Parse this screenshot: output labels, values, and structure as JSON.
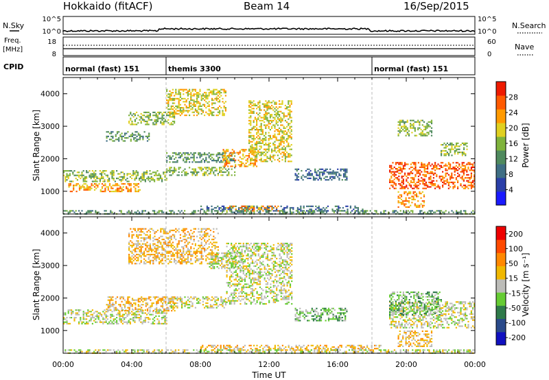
{
  "header": {
    "station": "Hokkaido (fitACF)",
    "beam": "Beam 14",
    "date": "16/Sep/2015"
  },
  "strip": {
    "nsky_label": "N.Sky",
    "nsearch_label": "N.Search",
    "freq_label_1": "Freq.",
    "freq_label_2": "[MHz]",
    "nave_label": "Nave",
    "cpid_label": "CPID",
    "noise_left_ticks": [
      "10^5",
      "10^0"
    ],
    "noise_right_ticks": [
      "10^5",
      "10^0"
    ],
    "freq_left_ticks": [
      "18",
      "8"
    ],
    "freq_right_ticks": [
      "60",
      "0"
    ]
  },
  "cpid_segments": [
    {
      "label": "normal (fast) 151",
      "start": "00:00",
      "end": "06:00"
    },
    {
      "label": "themis 3300",
      "start": "06:00",
      "end": "18:00"
    },
    {
      "label": "normal (fast) 151",
      "start": "18:00",
      "end": "24:00"
    }
  ],
  "colors": {
    "power_scale": [
      "#1a1aff",
      "#2a3fa8",
      "#3f6e84",
      "#4f8a5e",
      "#7fb33c",
      "#e0d020",
      "#ff9a00",
      "#ff5a00",
      "#ee1a00"
    ],
    "velocity_scale": [
      "#1010c0",
      "#2a4a8a",
      "#2f7a4a",
      "#66cc33",
      "#bcbcb8",
      "#f0b800",
      "#ff8800",
      "#ff4a00",
      "#ee0000"
    ]
  },
  "chart_data": [
    {
      "type": "heatmap",
      "title": "Power",
      "ylabel": "Slant Range [km]",
      "xlabel": "Time UT",
      "ylim": [
        300,
        4500
      ],
      "y_ticks": [
        "1000",
        "2000",
        "3000",
        "4000"
      ],
      "x_ticks": [
        "00:00",
        "04:00",
        "08:00",
        "12:00",
        "16:00",
        "20:00",
        "00:00"
      ],
      "colorbar_label": "Power [dB]",
      "colorbar_ticks": [
        "4",
        "8",
        "12",
        "16",
        "20",
        "24",
        "28"
      ],
      "regions": [
        {
          "t0": 0.0,
          "t1": 6.0,
          "r0": 1300,
          "r1": 1650,
          "level": 4
        },
        {
          "t0": 0.3,
          "t1": 4.5,
          "r0": 1000,
          "r1": 1250,
          "level": 6
        },
        {
          "t0": 2.5,
          "t1": 5.0,
          "r0": 2550,
          "r1": 2850,
          "level": 3
        },
        {
          "t0": 3.8,
          "t1": 6.5,
          "r0": 3050,
          "r1": 3450,
          "level": 4
        },
        {
          "t0": 6.0,
          "t1": 9.5,
          "r0": 3350,
          "r1": 4150,
          "level": 5
        },
        {
          "t0": 6.0,
          "t1": 10.0,
          "r0": 1900,
          "r1": 2200,
          "level": 3
        },
        {
          "t0": 6.0,
          "t1": 10.0,
          "r0": 1500,
          "r1": 1750,
          "level": 4
        },
        {
          "t0": 9.3,
          "t1": 11.3,
          "r0": 1750,
          "r1": 2300,
          "level": 6
        },
        {
          "t0": 10.8,
          "t1": 13.3,
          "r0": 1900,
          "r1": 3800,
          "level": 5
        },
        {
          "t0": 8.0,
          "t1": 17.5,
          "r0": 380,
          "r1": 560,
          "level": 2
        },
        {
          "t0": 9.5,
          "t1": 12.5,
          "r0": 380,
          "r1": 560,
          "level": 6
        },
        {
          "t0": 13.5,
          "t1": 16.5,
          "r0": 1350,
          "r1": 1700,
          "level": 2
        },
        {
          "t0": 19.0,
          "t1": 24.0,
          "r0": 1100,
          "r1": 1900,
          "level": 7
        },
        {
          "t0": 19.5,
          "t1": 21.0,
          "r0": 500,
          "r1": 1000,
          "level": 6
        },
        {
          "t0": 19.5,
          "t1": 21.5,
          "r0": 2700,
          "r1": 3200,
          "level": 4
        },
        {
          "t0": 22.0,
          "t1": 23.5,
          "r0": 2100,
          "r1": 2500,
          "level": 4
        },
        {
          "t0": 0.0,
          "t1": 24.0,
          "r0": 300,
          "r1": 420,
          "level": 3
        }
      ]
    },
    {
      "type": "heatmap",
      "title": "Velocity",
      "ylabel": "Slant Range [km]",
      "xlabel": "Time UT",
      "ylim": [
        300,
        4500
      ],
      "y_ticks": [
        "1000",
        "2000",
        "3000",
        "4000"
      ],
      "x_ticks": [
        "00:00",
        "04:00",
        "08:00",
        "12:00",
        "16:00",
        "20:00",
        "00:00"
      ],
      "colorbar_label": "Velocity [m s⁻¹]",
      "colorbar_ticks": [
        "200",
        "100",
        "50",
        "15",
        "-15",
        "-50",
        "-100",
        "-200"
      ],
      "regions": [
        {
          "t0": 0.0,
          "t1": 6.0,
          "r0": 1200,
          "r1": 1650,
          "level": 4
        },
        {
          "t0": 2.5,
          "t1": 6.5,
          "r0": 1600,
          "r1": 2050,
          "level": 5
        },
        {
          "t0": 3.8,
          "t1": 9.0,
          "r0": 3050,
          "r1": 4150,
          "level": 5
        },
        {
          "t0": 8.5,
          "t1": 10.5,
          "r0": 2900,
          "r1": 3400,
          "level": 4
        },
        {
          "t0": 6.0,
          "t1": 9.5,
          "r0": 1700,
          "r1": 2050,
          "level": 4
        },
        {
          "t0": 9.5,
          "t1": 13.3,
          "r0": 1800,
          "r1": 3700,
          "level": 4
        },
        {
          "t0": 13.5,
          "t1": 16.5,
          "r0": 1300,
          "r1": 1700,
          "level": 3
        },
        {
          "t0": 8.0,
          "t1": 18.5,
          "r0": 380,
          "r1": 560,
          "level": 5
        },
        {
          "t0": 19.0,
          "t1": 24.0,
          "r0": 1100,
          "r1": 1900,
          "level": 4
        },
        {
          "t0": 19.0,
          "t1": 22.0,
          "r0": 1500,
          "r1": 2200,
          "level": 3
        },
        {
          "t0": 19.5,
          "t1": 21.5,
          "r0": 500,
          "r1": 1000,
          "level": 5
        },
        {
          "t0": 0.0,
          "t1": 24.0,
          "r0": 300,
          "r1": 420,
          "level": 4
        }
      ]
    }
  ]
}
